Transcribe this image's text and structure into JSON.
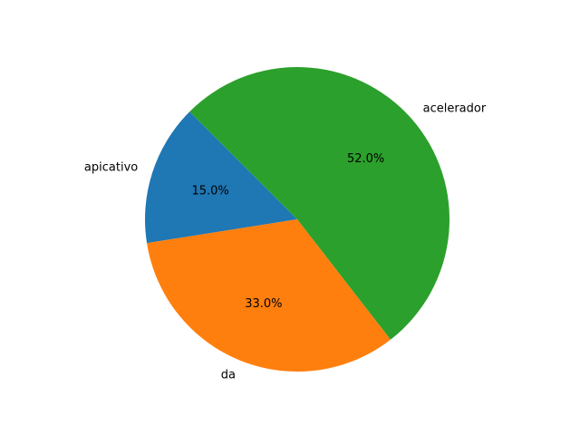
{
  "chart_data": {
    "type": "pie",
    "slices": [
      {
        "label": "apicativo",
        "value": 15.0,
        "pct_text": "15.0%",
        "color": "#1f77b4"
      },
      {
        "label": "da",
        "value": 33.0,
        "pct_text": "33.0%",
        "color": "#ff7f0e"
      },
      {
        "label": "acelerador",
        "value": 52.0,
        "pct_text": "52.0%",
        "color": "#2ca02c"
      }
    ],
    "start_angle_deg": 135,
    "direction": "counterclockwise",
    "title": "",
    "legend": "none"
  }
}
